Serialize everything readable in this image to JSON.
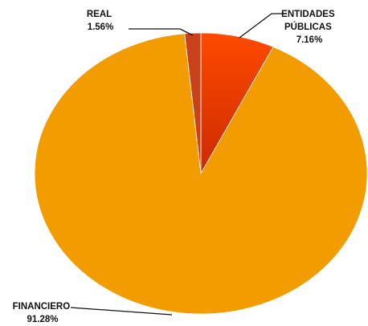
{
  "chart_data": {
    "type": "pie",
    "title": "",
    "slices": [
      {
        "label": "ENTIDADES PÚBLICAS",
        "label_lines": [
          "ENTIDADES",
          "PÚBLICAS"
        ],
        "value": 7.16,
        "value_label": "7.16%",
        "color": "#ff3a00"
      },
      {
        "label": "FINANCIERO",
        "label_lines": [
          "FINANCIERO"
        ],
        "value": 91.28,
        "value_label": "91.28%",
        "color": "#f39c00"
      },
      {
        "label": "REAL",
        "label_lines": [
          "REAL"
        ],
        "value": 1.56,
        "value_label": "1.56%",
        "color": "#c8431a"
      }
    ],
    "legend": "none",
    "start_angle": "12 o'clock",
    "direction": "clockwise"
  }
}
